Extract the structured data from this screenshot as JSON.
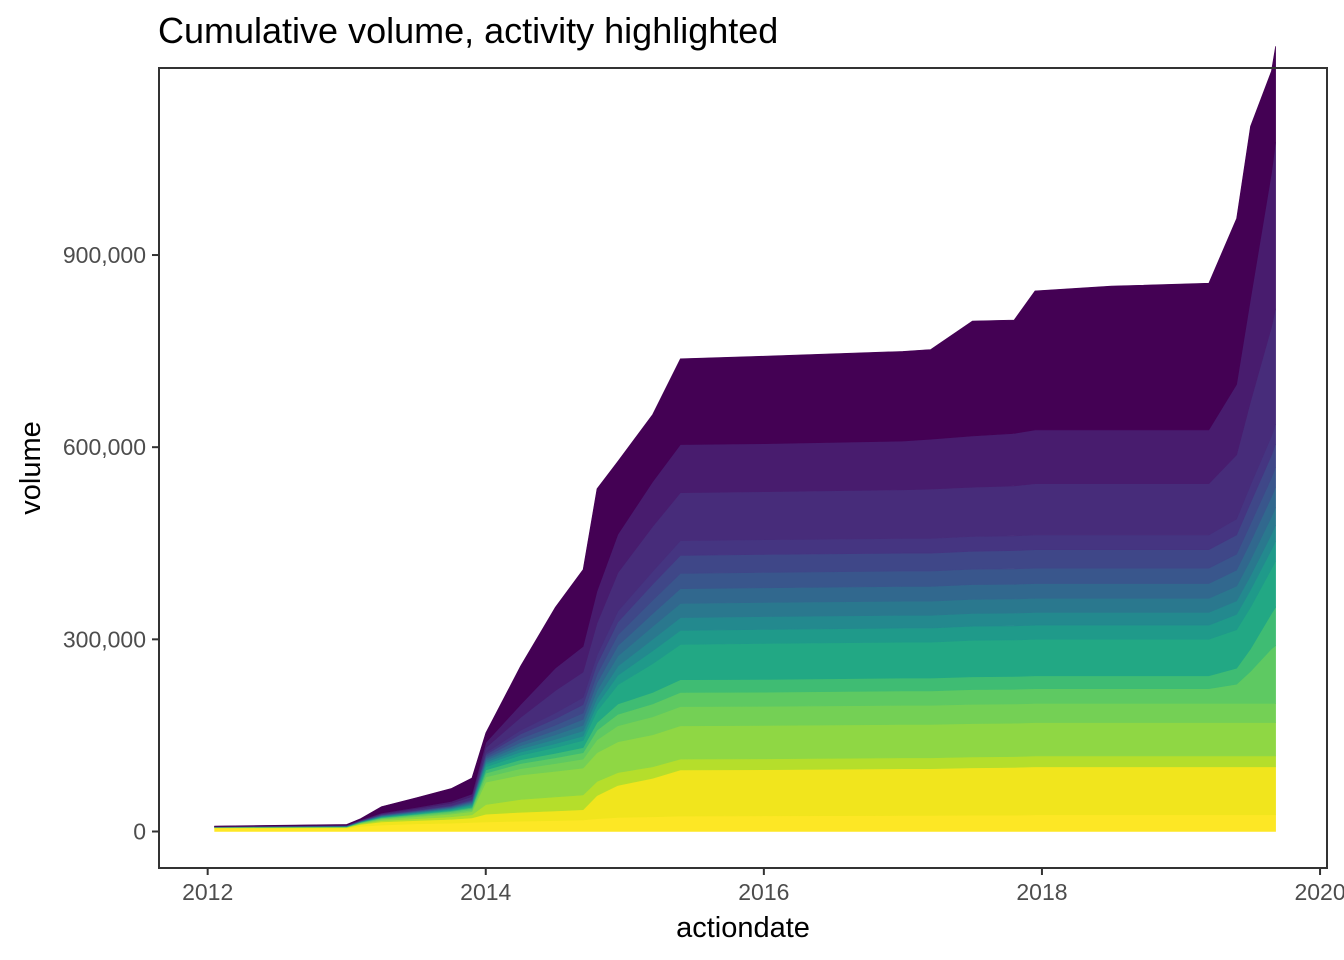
{
  "chart_data": {
    "type": "area",
    "title": "Cumulative volume, activity highlighted",
    "xlabel": "actiondate",
    "ylabel": "volume",
    "x_tick_labels": [
      "2012",
      "2014",
      "2016",
      "2018",
      "2020"
    ],
    "y_tick_labels": [
      "0",
      "300,000",
      "600,000",
      "900,000"
    ],
    "x_ticks": [
      2012,
      2014,
      2016,
      2018,
      2020
    ],
    "y_ticks": [
      0,
      300000,
      600000,
      900000
    ],
    "xlim": [
      2011.65,
      2020.05
    ],
    "ylim": [
      -57000,
      1192000
    ],
    "stacked": true,
    "grid": false,
    "legend": "none",
    "x": [
      2012.05,
      2013.0,
      2013.1,
      2013.25,
      2013.5,
      2013.75,
      2013.9,
      2014.0,
      2014.25,
      2014.5,
      2014.7,
      2014.8,
      2014.95,
      2015.2,
      2015.4,
      2016.0,
      2017.0,
      2017.2,
      2017.5,
      2017.8,
      2017.95,
      2018.5,
      2019.2,
      2019.4,
      2019.5,
      2019.65,
      2019.68
    ],
    "series": [
      {
        "color": "#fde725",
        "values": [
          5000,
          5000,
          8000,
          10000,
          12000,
          13000,
          14000,
          15000,
          16000,
          17000,
          18000,
          20000,
          22000,
          23000,
          24000,
          24500,
          25000,
          25000,
          25500,
          25500,
          26000,
          26000,
          26000,
          26000,
          26000,
          26000,
          26000
        ]
      },
      {
        "color": "#f1e51d",
        "values": [
          1000,
          1000,
          3000,
          5000,
          5000,
          6000,
          7000,
          12000,
          14000,
          15000,
          16000,
          36000,
          50000,
          60000,
          72000,
          72000,
          73000,
          73000,
          74000,
          74500,
          75000,
          75000,
          75000,
          75000,
          75000,
          75000,
          75000
        ]
      },
      {
        "color": "#b5de2b",
        "values": [
          200,
          500,
          1000,
          2000,
          3000,
          4000,
          5000,
          15000,
          20000,
          22000,
          23000,
          22000,
          20000,
          18000,
          17000,
          17000,
          17000,
          17000,
          17000,
          17000,
          17000,
          17000,
          17000,
          17000,
          17000,
          17000,
          17000
        ]
      },
      {
        "color": "#8fd744",
        "values": [
          200,
          500,
          1000,
          2000,
          3000,
          4000,
          5000,
          35000,
          38000,
          40000,
          42000,
          45000,
          48000,
          50000,
          52000,
          52000,
          52000,
          52000,
          52000,
          52000,
          52000,
          52000,
          52000,
          52000,
          52000,
          52000,
          52000
        ]
      },
      {
        "color": "#74d055",
        "values": [
          100,
          200,
          500,
          1000,
          1500,
          2000,
          2500,
          8000,
          10000,
          12000,
          14000,
          20000,
          25000,
          28000,
          30000,
          30000,
          30000,
          30000,
          30000,
          30000,
          30000,
          30000,
          30000,
          30000,
          30000,
          30000,
          30000
        ]
      },
      {
        "color": "#5ec962",
        "values": [
          100,
          200,
          500,
          1000,
          1500,
          2000,
          2500,
          6000,
          8000,
          9000,
          10000,
          15000,
          18000,
          20000,
          22000,
          22000,
          22500,
          22500,
          23000,
          23000,
          23000,
          23000,
          23000,
          30000,
          50000,
          85000,
          90000
        ]
      },
      {
        "color": "#3fbc73",
        "values": [
          100,
          200,
          400,
          800,
          1000,
          1500,
          2000,
          5000,
          6000,
          7000,
          8000,
          12000,
          16000,
          18000,
          20000,
          20000,
          20000,
          20000,
          20000,
          20000,
          20000,
          20000,
          20000,
          25000,
          35000,
          55000,
          60000
        ]
      },
      {
        "color": "#22a884",
        "values": [
          100,
          200,
          400,
          800,
          1000,
          1500,
          2000,
          5000,
          7000,
          9000,
          11000,
          18000,
          30000,
          45000,
          55000,
          56000,
          56000,
          56000,
          57000,
          57000,
          57000,
          57000,
          57000,
          60000,
          65000,
          70000,
          72000
        ]
      },
      {
        "color": "#1f9a8a",
        "values": [
          100,
          200,
          300,
          600,
          800,
          1000,
          1500,
          4000,
          5000,
          6000,
          7000,
          10000,
          15000,
          20000,
          22000,
          22000,
          22000,
          22000,
          22000,
          22000,
          22000,
          22000,
          22000,
          24000,
          27000,
          30000,
          31000
        ]
      },
      {
        "color": "#23898e",
        "values": [
          100,
          200,
          300,
          600,
          800,
          1000,
          1500,
          3000,
          5000,
          7000,
          8000,
          10000,
          14000,
          18000,
          20000,
          20000,
          20000,
          20000,
          20000,
          20000,
          20000,
          20000,
          20000,
          21000,
          22000,
          24000,
          25000
        ]
      },
      {
        "color": "#2a788e",
        "values": [
          100,
          200,
          300,
          600,
          800,
          1000,
          1500,
          3000,
          5000,
          7000,
          9000,
          12000,
          16000,
          20000,
          22000,
          22000,
          22000,
          22000,
          22000,
          22000,
          22000,
          22000,
          22000,
          23000,
          25000,
          27000,
          28000
        ]
      },
      {
        "color": "#31688e",
        "values": [
          100,
          200,
          300,
          600,
          800,
          1000,
          1500,
          3000,
          5000,
          7000,
          9000,
          12000,
          16000,
          20000,
          23000,
          23000,
          23000,
          23000,
          23000,
          23000,
          23000,
          23000,
          23000,
          25000,
          28000,
          31000,
          32000
        ]
      },
      {
        "color": "#39568c",
        "values": [
          100,
          200,
          300,
          600,
          800,
          1000,
          1500,
          3000,
          6000,
          8000,
          10000,
          13000,
          17000,
          21000,
          24000,
          24000,
          24000,
          24000,
          24000,
          24000,
          24000,
          24000,
          24000,
          25000,
          28000,
          30000,
          31000
        ]
      },
      {
        "color": "#3f4788",
        "values": [
          100,
          200,
          300,
          600,
          800,
          1000,
          1500,
          3000,
          7000,
          10000,
          13000,
          16000,
          20000,
          25000,
          28000,
          28000,
          28000,
          28000,
          28000,
          28500,
          29000,
          29000,
          29000,
          30000,
          33000,
          35000,
          36000
        ]
      },
      {
        "color": "#453581",
        "values": [
          100,
          200,
          300,
          600,
          800,
          1000,
          1500,
          3000,
          6000,
          9000,
          11000,
          14000,
          17000,
          20000,
          23000,
          23000,
          23000,
          23000,
          23000,
          23000,
          23000,
          23000,
          23000,
          25000,
          28000,
          30000,
          31000
        ]
      },
      {
        "color": "#472c7a",
        "values": [
          200,
          400,
          600,
          1000,
          2000,
          3000,
          4000,
          8000,
          20000,
          35000,
          40000,
          50000,
          60000,
          70000,
          75000,
          75000,
          76000,
          77000,
          77000,
          78000,
          80000,
          80000,
          80000,
          100000,
          130000,
          170000,
          180000
        ]
      },
      {
        "color": "#481c6e",
        "values": [
          200,
          400,
          600,
          1000,
          2000,
          3000,
          4000,
          8000,
          20000,
          35000,
          40000,
          50000,
          60000,
          70000,
          75000,
          75000,
          76000,
          78000,
          80000,
          82000,
          84000,
          84000,
          84000,
          110000,
          160000,
          240000,
          260000
        ]
      },
      {
        "color": "#440154",
        "values": [
          700,
          1000,
          2000,
          10000,
          15000,
          20000,
          25000,
          15000,
          60000,
          95000,
          120000,
          160000,
          114000,
          105000,
          134000,
          136500,
          140000,
          140000,
          179500,
          177000,
          217000,
          224500,
          229000,
          259000,
          270000,
          160000,
          150000
        ]
      }
    ]
  }
}
